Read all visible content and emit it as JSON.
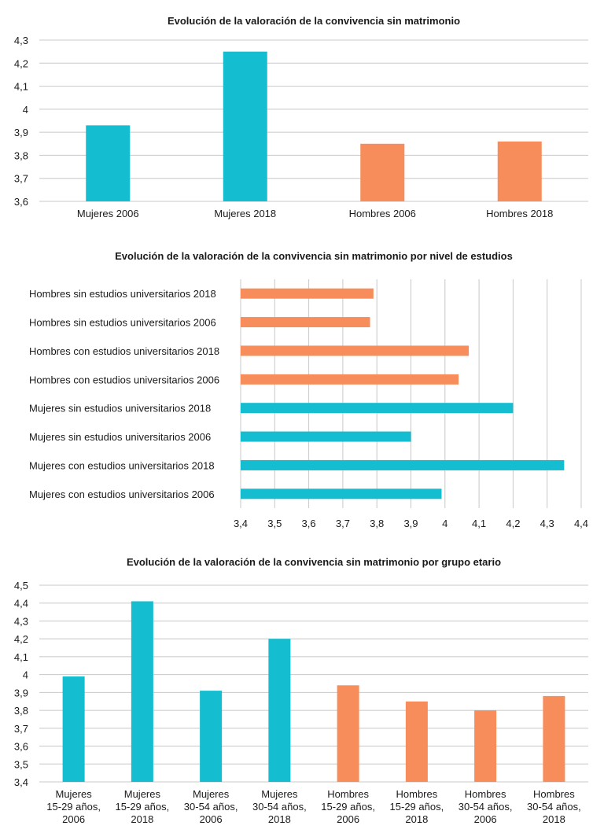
{
  "colors": {
    "mujeres": "#14bdd0",
    "hombres": "#f68d5a",
    "grid": "#c8c8c8"
  },
  "chart_data": [
    {
      "type": "bar",
      "title": "Evolución de la valoración de la convivencia sin matrimonio",
      "categories": [
        "Mujeres 2006",
        "Mujeres 2018",
        "Hombres 2006",
        "Hombres 2018"
      ],
      "values": [
        3.93,
        4.25,
        3.85,
        3.86
      ],
      "bar_groups": [
        "mujeres",
        "mujeres",
        "hombres",
        "hombres"
      ],
      "ylim": [
        3.6,
        4.3
      ],
      "yticks": [
        "3,6",
        "3,7",
        "3,8",
        "3,9",
        "4",
        "4,1",
        "4,2",
        "4,3"
      ],
      "grid": true
    },
    {
      "type": "bar",
      "orientation": "horizontal",
      "title": "Evolución de la valoración de la convivencia sin matrimonio por nivel de estudios",
      "categories": [
        "Hombres sin estudios universitarios 2018",
        "Hombres sin estudios universitarios 2006",
        "Hombres con estudios universitarios 2018",
        "Hombres con estudios universitarios 2006",
        "Mujeres sin estudios universitarios 2018",
        "Mujeres sin estudios universitarios 2006",
        "Mujeres con estudios universitarios 2018",
        "Mujeres con estudios universitarios 2006"
      ],
      "values": [
        3.79,
        3.78,
        4.07,
        4.04,
        4.2,
        3.9,
        4.35,
        3.99
      ],
      "bar_groups": [
        "hombres",
        "hombres",
        "hombres",
        "hombres",
        "mujeres",
        "mujeres",
        "mujeres",
        "mujeres"
      ],
      "xlim": [
        3.4,
        4.4
      ],
      "xticks": [
        "3,4",
        "3,5",
        "3,6",
        "3,7",
        "3,8",
        "3,9",
        "4",
        "4,1",
        "4,2",
        "4,3",
        "4,4"
      ],
      "grid": true
    },
    {
      "type": "bar",
      "title": "Evolución de la valoración de la convivencia sin matrimonio por grupo etario",
      "categories": [
        [
          "Mujeres",
          "15-29 años,",
          "2006"
        ],
        [
          "Mujeres",
          "15-29 años,",
          "2018"
        ],
        [
          "Mujeres",
          "30-54 años,",
          "2006"
        ],
        [
          "Mujeres",
          "30-54 años,",
          "2018"
        ],
        [
          "Hombres",
          "15-29 años,",
          "2006"
        ],
        [
          "Hombres",
          "15-29 años,",
          "2018"
        ],
        [
          "Hombres",
          "30-54 años,",
          "2006"
        ],
        [
          "Hombres",
          "30-54 años,",
          "2018"
        ]
      ],
      "values": [
        3.99,
        4.41,
        3.91,
        4.2,
        3.94,
        3.85,
        3.8,
        3.88
      ],
      "bar_groups": [
        "mujeres",
        "mujeres",
        "mujeres",
        "mujeres",
        "hombres",
        "hombres",
        "hombres",
        "hombres"
      ],
      "ylim": [
        3.4,
        4.5
      ],
      "yticks": [
        "3,4",
        "3,5",
        "3,6",
        "3,7",
        "3,8",
        "3,9",
        "4",
        "4,1",
        "4,2",
        "4,3",
        "4,4",
        "4,5"
      ],
      "grid": true
    }
  ]
}
